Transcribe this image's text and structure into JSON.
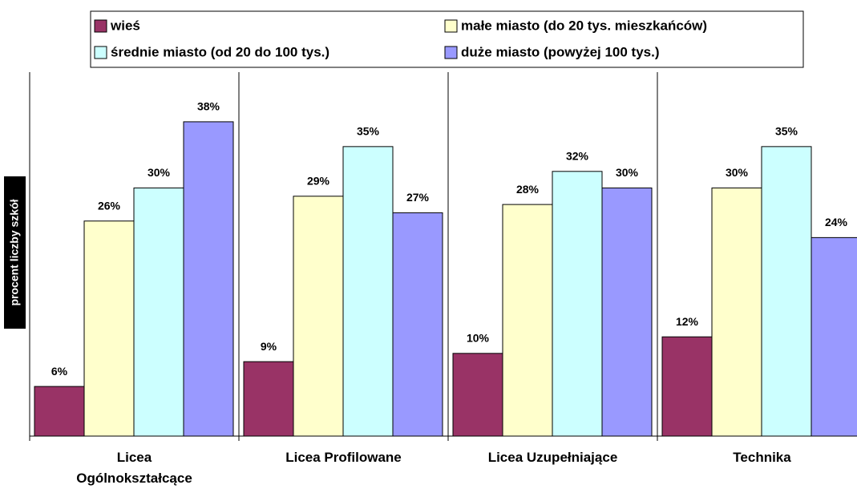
{
  "chart_data": {
    "type": "bar",
    "y_label": "procent liczby szkół",
    "categories": [
      "Licea\nOgólnokształcące",
      "Licea Profilowane",
      "Licea Uzupełniające",
      "Technika"
    ],
    "series": [
      {
        "name": "wieś",
        "color": "#993366",
        "values": [
          6,
          9,
          10,
          12
        ],
        "value_labels": [
          "6%",
          "9%",
          "10%",
          "12%"
        ]
      },
      {
        "name": "małe miasto (do 20 tys. mieszkańców)",
        "color": "#ffffcc",
        "values": [
          26,
          29,
          28,
          30
        ],
        "value_labels": [
          "26%",
          "29%",
          "28%",
          "30%"
        ]
      },
      {
        "name": "średnie miasto (od 20 do 100 tys.)",
        "color": "#ccffff",
        "values": [
          30,
          35,
          32,
          35
        ],
        "value_labels": [
          "30%",
          "35%",
          "32%",
          "35%"
        ]
      },
      {
        "name": "duże miasto (powyżej 100 tys.)",
        "color": "#9999ff",
        "values": [
          38,
          27,
          30,
          24
        ],
        "value_labels": [
          "38%",
          "27%",
          "30%",
          "24%"
        ]
      }
    ],
    "ylim": [
      0,
      44
    ]
  }
}
